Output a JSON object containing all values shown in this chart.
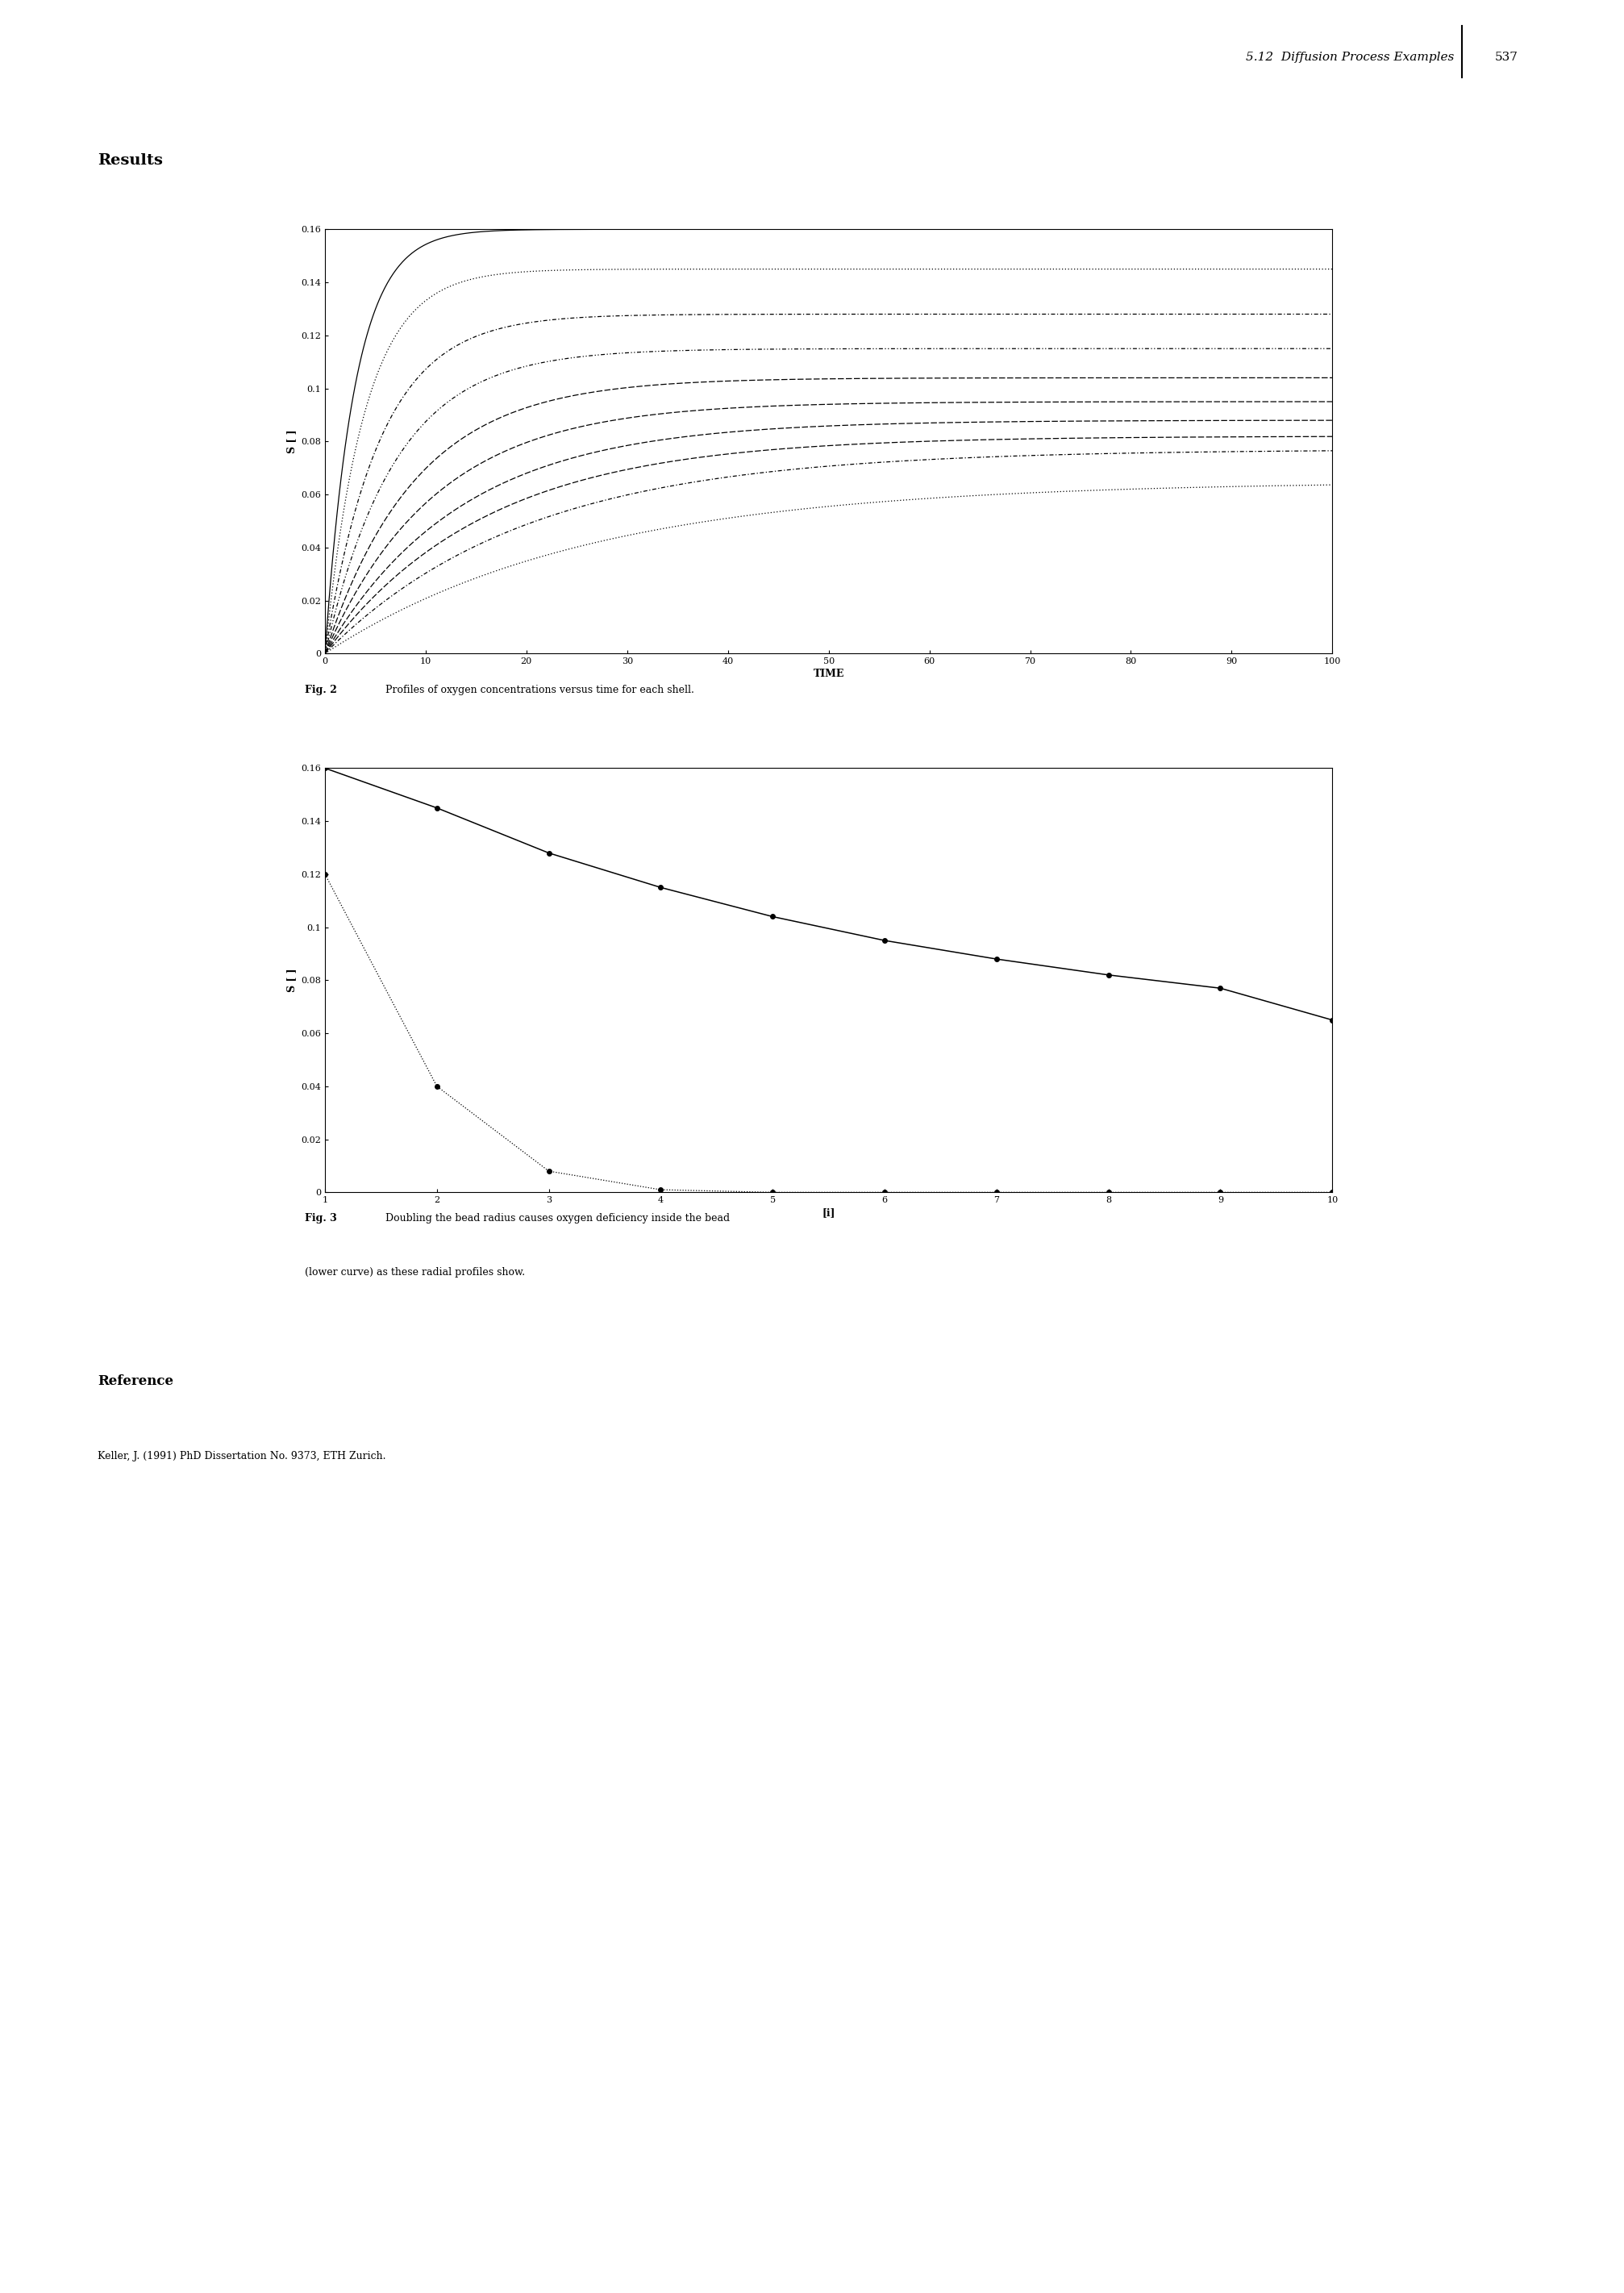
{
  "page_header": "5.12  Diffusion Process Examples",
  "page_number": "537",
  "section_title": "Results",
  "fig2_caption_bold": "Fig. 2",
  "fig2_caption_normal": "  Profiles of oxygen concentrations versus time for each shell.",
  "fig3_caption_bold": "Fig. 3",
  "fig3_caption_line1": "  Doubling the bead radius causes oxygen deficiency inside the bead",
  "fig3_caption_line2": "(lower curve) as these radial profiles show.",
  "reference_title": "Reference",
  "reference_text": "Keller, J. (1991) PhD Dissertation No. 9373, ETH Zurich.",
  "fig1_xlabel": "TIME",
  "fig1_ylabel": "S [ ]",
  "fig1_xlim": [
    0,
    100
  ],
  "fig1_ylim": [
    0,
    0.16
  ],
  "fig1_xticks": [
    0,
    10,
    20,
    30,
    40,
    50,
    60,
    70,
    80,
    90,
    100
  ],
  "fig1_yticks": [
    0,
    0.02,
    0.04,
    0.06,
    0.08,
    0.1,
    0.12,
    0.14,
    0.16
  ],
  "fig2_xlabel": "[i]",
  "fig2_ylabel": "S [ ]",
  "fig2_xlim": [
    1,
    10
  ],
  "fig2_ylim": [
    0,
    0.16
  ],
  "fig2_xticks": [
    1,
    2,
    3,
    4,
    5,
    6,
    7,
    8,
    9,
    10
  ],
  "fig2_yticks": [
    0,
    0.02,
    0.04,
    0.06,
    0.08,
    0.1,
    0.12,
    0.14,
    0.16
  ],
  "steady_states": [
    0.16,
    0.145,
    0.128,
    0.115,
    0.104,
    0.095,
    0.088,
    0.082,
    0.077,
    0.065
  ],
  "taus": [
    3.0,
    4.0,
    5.5,
    7.0,
    9.0,
    11.0,
    13.5,
    16.0,
    20.0,
    26.0
  ],
  "upper_curve": [
    0.16,
    0.145,
    0.128,
    0.115,
    0.104,
    0.095,
    0.088,
    0.082,
    0.077,
    0.065
  ],
  "lower_curve": [
    0.12,
    0.04,
    0.008,
    0.001,
    0.0,
    0.0,
    0.0,
    0.0,
    0.0,
    0.0
  ],
  "background_color": "#ffffff",
  "line_color": "#000000"
}
